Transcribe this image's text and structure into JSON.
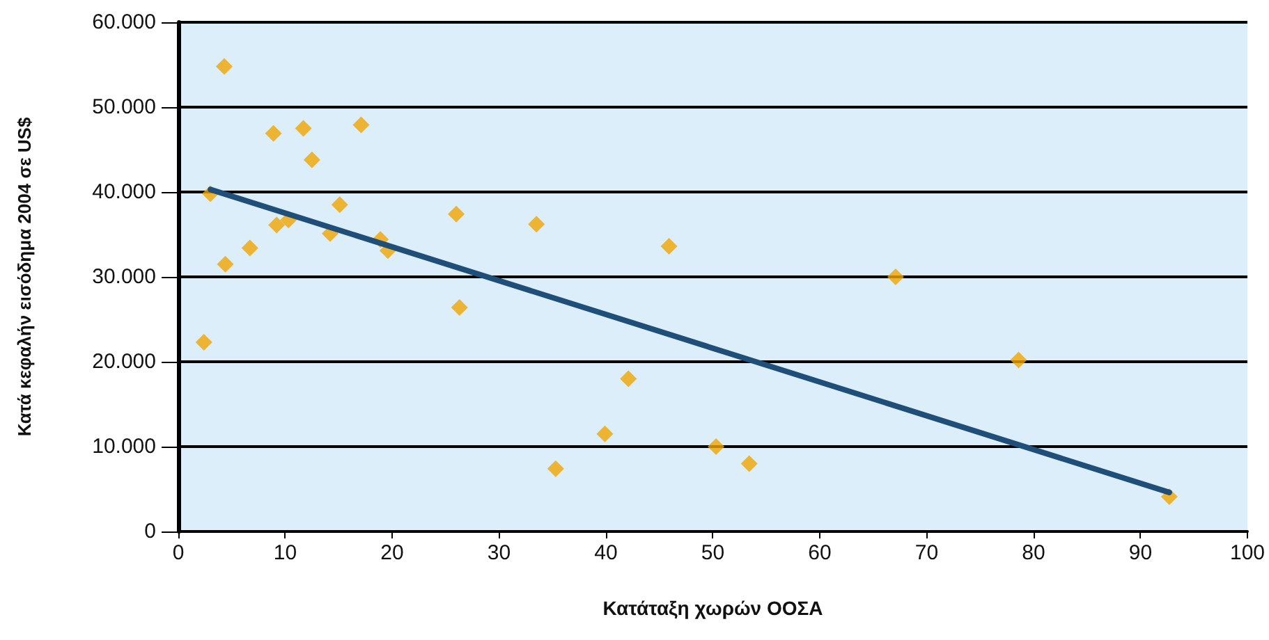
{
  "chart_data": {
    "type": "scatter",
    "xlabel": "Κατάταξη χωρών ΟΟΣΑ",
    "ylabel": "Κατά κεφαλήν εισόδημα 2004 σε US$",
    "x": [
      2.4,
      4.3,
      3.0,
      4.4,
      6.7,
      8.9,
      9.2,
      10.3,
      11.7,
      12.5,
      15.1,
      14.2,
      17.1,
      18.9,
      19.6,
      26.0,
      26.3,
      33.5,
      35.3,
      39.9,
      42.1,
      45.9,
      50.3,
      53.4,
      67.1,
      78.6,
      92.7
    ],
    "series": [
      {
        "color": "#f0a500",
        "marker": "diamond",
        "values": [
          22300,
          54800,
          39800,
          31500,
          33400,
          46900,
          36100,
          36700,
          47500,
          43800,
          38500,
          35100,
          47900,
          34400,
          33100,
          37400,
          26400,
          36200,
          7400,
          11500,
          18000,
          33600,
          10000,
          8000,
          30000,
          20200,
          4100
        ]
      },
      {
        "type": "line",
        "color": "#1f4e79",
        "marker": "none",
        "x": [
          3.0,
          92.7
        ],
        "values": [
          40300,
          4600
        ]
      }
    ],
    "xlim": [
      0,
      100
    ],
    "xticks": [
      0,
      10,
      20,
      30,
      40,
      50,
      60,
      70,
      80,
      90,
      100
    ],
    "ylim": [
      0,
      60000
    ],
    "yticks": [
      {
        "value": 0,
        "label": "0"
      },
      {
        "value": 10000,
        "label": "10.000"
      },
      {
        "value": 20000,
        "label": "20.000"
      },
      {
        "value": 30000,
        "label": "30.000"
      },
      {
        "value": 40000,
        "label": "40.000"
      },
      {
        "value": 50000,
        "label": "50.000"
      },
      {
        "value": 60000,
        "label": "60.000"
      }
    ],
    "grid": "y"
  }
}
